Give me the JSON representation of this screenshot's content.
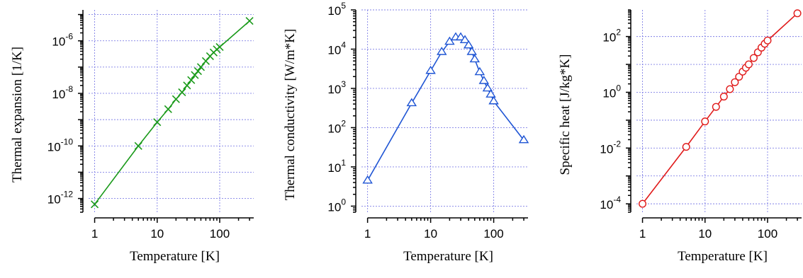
{
  "chart_data": [
    {
      "type": "line",
      "xscale": "log",
      "yscale": "log",
      "xlabel": "Temperature [K]",
      "ylabel": "Thermal expansion [1/K]",
      "xlim": [
        0.8,
        350
      ],
      "ylim": [
        3e-13,
        1.5e-05
      ],
      "xticks": [
        1,
        10,
        100
      ],
      "xticklabels": [
        "1",
        "10",
        "100"
      ],
      "yticks": [
        1e-12,
        1e-10,
        1e-08,
        1e-06
      ],
      "yticklabels": [
        [
          "10",
          "-12"
        ],
        [
          "10",
          "-10"
        ],
        [
          "10",
          "-8"
        ],
        [
          "10",
          "-6"
        ]
      ],
      "grid": true,
      "marker": "x",
      "color": "#1a9a1a",
      "series": [
        {
          "x": [
            1,
            5,
            10,
            15,
            20,
            25,
            30,
            35,
            40,
            45,
            50,
            60,
            70,
            80,
            90,
            100,
            300
          ],
          "y": [
            6e-13,
            1e-10,
            8e-10,
            2.5e-09,
            6e-09,
            1.1e-08,
            2e-08,
            3.2e-08,
            5e-08,
            7e-08,
            1e-07,
            1.7e-07,
            2.6e-07,
            3.6e-07,
            4.7e-07,
            5.8e-07,
            5.7e-06
          ]
        }
      ]
    },
    {
      "type": "line",
      "xscale": "log",
      "yscale": "log",
      "xlabel": "Temperature [K]",
      "ylabel": "Thermal conductivity [W/m*K]",
      "xlim": [
        0.8,
        350
      ],
      "ylim": [
        0.7,
        100000
      ],
      "xticks": [
        1,
        10,
        100
      ],
      "xticklabels": [
        "1",
        "10",
        "100"
      ],
      "yticks": [
        1,
        10,
        100,
        1000,
        10000,
        100000
      ],
      "yticklabels": [
        [
          "10",
          "0"
        ],
        [
          "10",
          "1"
        ],
        [
          "10",
          "2"
        ],
        [
          "10",
          "3"
        ],
        [
          "10",
          "4"
        ],
        [
          "10",
          "5"
        ]
      ],
      "grid": true,
      "marker": "triangle",
      "color": "#1f55d4",
      "series": [
        {
          "x": [
            1,
            5,
            10,
            15,
            20,
            25,
            30,
            35,
            40,
            45,
            50,
            60,
            70,
            80,
            90,
            100,
            300
          ],
          "y": [
            4.5,
            420,
            2800,
            8500,
            15500,
            20000,
            20000,
            17000,
            12500,
            8500,
            5500,
            2600,
            1550,
            1000,
            700,
            470,
            48
          ]
        }
      ]
    },
    {
      "type": "line",
      "xscale": "log",
      "yscale": "log",
      "xlabel": "Temperature [K]",
      "ylabel": "Specific heat [J/kg*K]",
      "xlim": [
        0.8,
        350
      ],
      "ylim": [
        5e-05,
        900
      ],
      "xticks": [
        1,
        10,
        100
      ],
      "xticklabels": [
        "1",
        "10",
        "100"
      ],
      "yticks": [
        0.0001,
        0.01,
        1,
        100
      ],
      "yticklabels": [
        [
          "10",
          "-4"
        ],
        [
          "10",
          "-2"
        ],
        [
          "10",
          "0"
        ],
        [
          "10",
          "2"
        ]
      ],
      "grid": true,
      "marker": "circle",
      "color": "#e01a1a",
      "series": [
        {
          "x": [
            1,
            5,
            10,
            15,
            20,
            25,
            30,
            35,
            40,
            45,
            50,
            60,
            70,
            80,
            90,
            100,
            300
          ],
          "y": [
            0.0001,
            0.011,
            0.09,
            0.3,
            0.7,
            1.3,
            2.3,
            3.6,
            5.5,
            7.6,
            10,
            17,
            27,
            40,
            55,
            72,
            680
          ]
        }
      ]
    }
  ]
}
